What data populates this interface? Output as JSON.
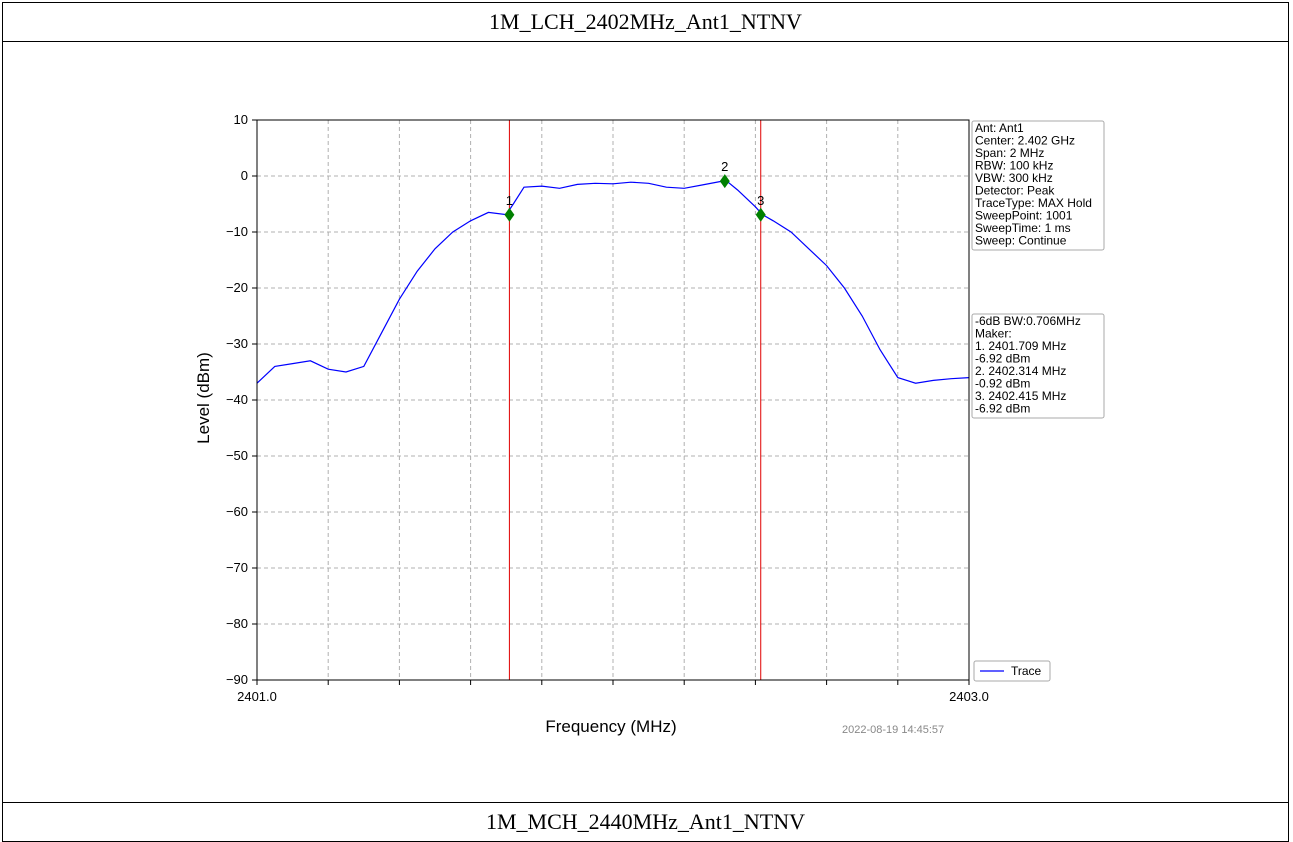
{
  "page": {
    "top_title": "1M_LCH_2402MHz_Ant1_NTNV",
    "bottom_title": "1M_MCH_2440MHz_Ant1_NTNV"
  },
  "chart_data": {
    "type": "line",
    "title": "",
    "xlabel": "Frequency (MHz)",
    "ylabel": "Level (dBm)",
    "xlim": [
      2401.0,
      2403.0
    ],
    "ylim": [
      -90,
      10
    ],
    "x_tick_labels": [
      {
        "value": 2401.0,
        "label": "2401.0"
      },
      {
        "value": 2403.0,
        "label": "2403.0"
      }
    ],
    "x_minor_ticks": [
      2401.2,
      2401.4,
      2401.6,
      2401.8,
      2402.0,
      2402.2,
      2402.4,
      2402.6,
      2402.8
    ],
    "y_ticks": [
      10,
      0,
      -10,
      -20,
      -30,
      -40,
      -50,
      -60,
      -70,
      -80,
      -90
    ],
    "grid": true,
    "colors": {
      "trace": "#0000ff",
      "marker": "#008000",
      "vline": "#e00000"
    },
    "series": [
      {
        "name": "Trace",
        "x": [
          2401.0,
          2401.05,
          2401.1,
          2401.15,
          2401.2,
          2401.25,
          2401.3,
          2401.35,
          2401.4,
          2401.45,
          2401.5,
          2401.55,
          2401.6,
          2401.65,
          2401.7,
          2401.72,
          2401.75,
          2401.8,
          2401.85,
          2401.9,
          2401.95,
          2402.0,
          2402.05,
          2402.1,
          2402.15,
          2402.2,
          2402.25,
          2402.3,
          2402.32,
          2402.35,
          2402.4,
          2402.42,
          2402.45,
          2402.5,
          2402.55,
          2402.6,
          2402.65,
          2402.7,
          2402.75,
          2402.8,
          2402.85,
          2402.9,
          2402.95,
          2403.0
        ],
        "y": [
          -37,
          -34,
          -33.5,
          -33,
          -34.5,
          -35,
          -34,
          -28,
          -22,
          -17,
          -13,
          -10,
          -8,
          -6.5,
          -6.9,
          -5,
          -2,
          -1.8,
          -2.2,
          -1.5,
          -1.3,
          -1.4,
          -1.1,
          -1.3,
          -2,
          -2.2,
          -1.6,
          -1,
          -0.92,
          -2.5,
          -5.5,
          -6.9,
          -8,
          -10,
          -13,
          -16,
          -20,
          -25,
          -31,
          -36,
          -37,
          -36.5,
          -36.2,
          -36
        ]
      }
    ],
    "markers": [
      {
        "label": "1",
        "x": 2401.709,
        "y": -6.92
      },
      {
        "label": "2",
        "x": 2402.314,
        "y": -0.92
      },
      {
        "label": "3",
        "x": 2402.415,
        "y": -6.92
      }
    ],
    "vlines": [
      2401.709,
      2402.415
    ],
    "info_box": [
      "Ant: Ant1",
      "Center: 2.402 GHz",
      "Span: 2 MHz",
      "RBW: 100 kHz",
      "VBW: 300 kHz",
      "Detector: Peak",
      "TraceType: MAX Hold",
      "SweepPoint: 1001",
      "SweepTime: 1 ms",
      "Sweep: Continue"
    ],
    "marker_box": [
      "-6dB BW:0.706MHz",
      "Maker:",
      "1. 2401.709 MHz",
      "   -6.92 dBm",
      "2. 2402.314 MHz",
      "   -0.92 dBm",
      "3. 2402.415 MHz",
      "   -6.92 dBm"
    ],
    "legend": {
      "label": "Trace",
      "placement": "bottom-right"
    },
    "timestamp": "2022-08-19 14:45:57"
  }
}
